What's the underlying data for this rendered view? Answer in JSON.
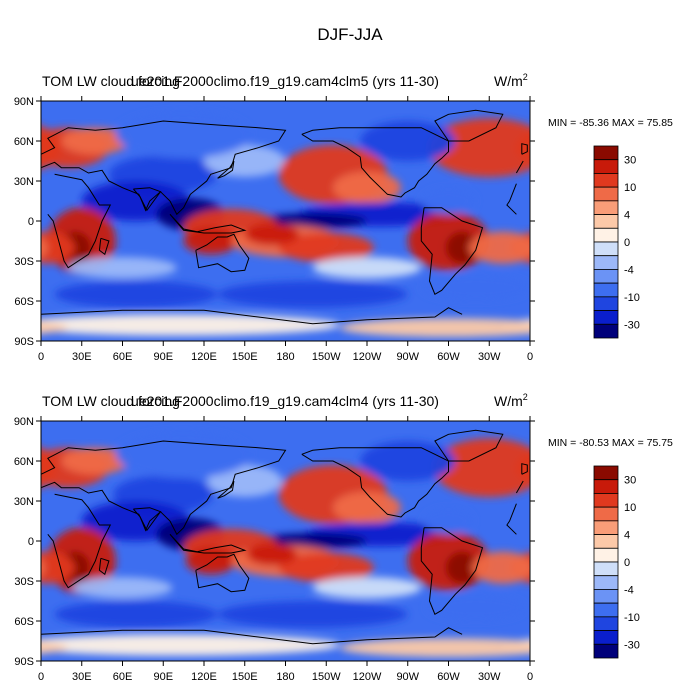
{
  "figure_title": "DJF-JJA",
  "colors": {
    "scale": [
      "#00007a",
      "#0a1ecc",
      "#1f45e0",
      "#3d6ef0",
      "#6b93f5",
      "#9cb8f9",
      "#cfdff9",
      "#fff2e6",
      "#fcc9a8",
      "#f99d78",
      "#ef6a47",
      "#e0391f",
      "#c81a0a",
      "#8a0a00"
    ],
    "land_outline": "#000000",
    "frame": "#000000"
  },
  "colorbar_labels": [
    "30",
    "10",
    "4",
    "0",
    "-4",
    "-10",
    "-30"
  ],
  "chart_data": [
    {
      "type": "heatmap",
      "left_title": "TOM LW cloud forcing",
      "center_title": "ue201.F2000climo.f19_g19.cam4clm5 (yrs 11-30)",
      "units": "W/m",
      "units_exp": "2",
      "min_max_label": "MIN = -85.36 MAX =  75.85",
      "min": -85.36,
      "max": 75.85,
      "x_ticks": [
        "0",
        "30E",
        "60E",
        "90E",
        "120E",
        "150E",
        "180",
        "150W",
        "120W",
        "90W",
        "60W",
        "30W",
        "0"
      ],
      "y_ticks": [
        "90N",
        "60N",
        "30N",
        "0",
        "30S",
        "60S",
        "90S"
      ],
      "xlim": [
        0,
        360
      ],
      "ylim": [
        -90,
        90
      ],
      "colorbar_levels": [
        -30,
        -10,
        -4,
        0,
        4,
        10,
        30
      ]
    },
    {
      "type": "heatmap",
      "left_title": "TOM LW cloud forcing",
      "center_title": "ue201.F2000climo.f19_g19.cam4clm4 (yrs 11-30)",
      "units": "W/m",
      "units_exp": "2",
      "min_max_label": "MIN = -80.53 MAX =  75.75",
      "min": -80.53,
      "max": 75.75,
      "x_ticks": [
        "0",
        "30E",
        "60E",
        "90E",
        "120E",
        "150E",
        "180",
        "150W",
        "120W",
        "90W",
        "60W",
        "30W",
        "0"
      ],
      "y_ticks": [
        "90N",
        "60N",
        "30N",
        "0",
        "30S",
        "60S",
        "90S"
      ],
      "xlim": [
        0,
        360
      ],
      "ylim": [
        -90,
        90
      ],
      "colorbar_levels": [
        -30,
        -10,
        -4,
        0,
        4,
        10,
        30
      ]
    }
  ]
}
